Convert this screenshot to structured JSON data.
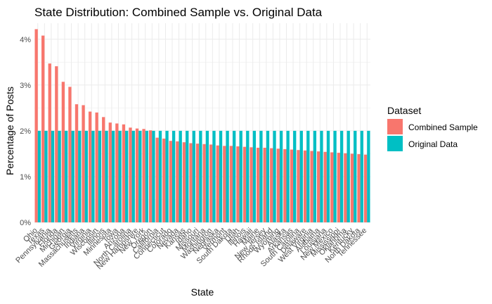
{
  "chart_data": {
    "type": "bar",
    "title": "State Distribution: Combined Sample vs. Original Data",
    "xlabel": "State",
    "ylabel": "Percentage of Posts",
    "ylim": [
      0,
      4.35
    ],
    "yticks": [
      0,
      1,
      2,
      3,
      4
    ],
    "ytick_labels": [
      "0%",
      "1%",
      "2%",
      "3%",
      "4%"
    ],
    "grid": true,
    "legend": {
      "title": "Dataset",
      "position": "right"
    },
    "categories": [
      "Ohio",
      "Texas",
      "Pennsylvania",
      "Florida",
      "Michigan",
      "Georgia",
      "Massachusetts",
      "Indiana",
      "Virginia",
      "Wisconsin",
      "Illinois",
      "Minnesota",
      "Iowa",
      "Arizona",
      "North Carolina",
      "New Hampshire",
      "New York",
      "Oregon",
      "California",
      "Connecticut",
      "Colorado",
      "Nevada",
      "Kansas",
      "Idaho",
      "Missouri",
      "Montana",
      "Washington",
      "Nebraska",
      "Vermont",
      "South Dakota",
      "Utah",
      "Illinois",
      "Hawaii",
      "Maine",
      "New Jersey",
      "Rhode Island",
      "Wyoming",
      "Alaska",
      "Arkansas",
      "South Carolina",
      "Delaware",
      "West Virginia",
      "Alabama",
      "Louisiana",
      "New Mexico",
      "Mississippi",
      "Oklahoma",
      "Kentucky",
      "North Dakota",
      "Tennessee"
    ],
    "series": [
      {
        "name": "Combined Sample",
        "color": "#F8766D",
        "values": [
          4.22,
          4.08,
          3.47,
          3.41,
          3.07,
          2.96,
          2.58,
          2.56,
          2.42,
          2.4,
          2.3,
          2.18,
          2.16,
          2.14,
          2.07,
          2.05,
          2.04,
          2.01,
          1.85,
          1.83,
          1.78,
          1.77,
          1.75,
          1.73,
          1.72,
          1.71,
          1.7,
          1.68,
          1.67,
          1.67,
          1.66,
          1.65,
          1.64,
          1.63,
          1.63,
          1.62,
          1.61,
          1.6,
          1.59,
          1.58,
          1.57,
          1.56,
          1.55,
          1.54,
          1.53,
          1.52,
          1.51,
          1.5,
          1.49,
          1.48
        ]
      },
      {
        "name": "Original Data",
        "color": "#00BFC4",
        "values": [
          2,
          2,
          2,
          2,
          2,
          2,
          2,
          2,
          2,
          2,
          2,
          2,
          2,
          2,
          2,
          2,
          2,
          2,
          2,
          2,
          2,
          2,
          2,
          2,
          2,
          2,
          2,
          2,
          2,
          2,
          2,
          2,
          2,
          2,
          2,
          2,
          2,
          2,
          2,
          2,
          2,
          2,
          2,
          2,
          2,
          2,
          2,
          2,
          2,
          2
        ]
      }
    ]
  }
}
